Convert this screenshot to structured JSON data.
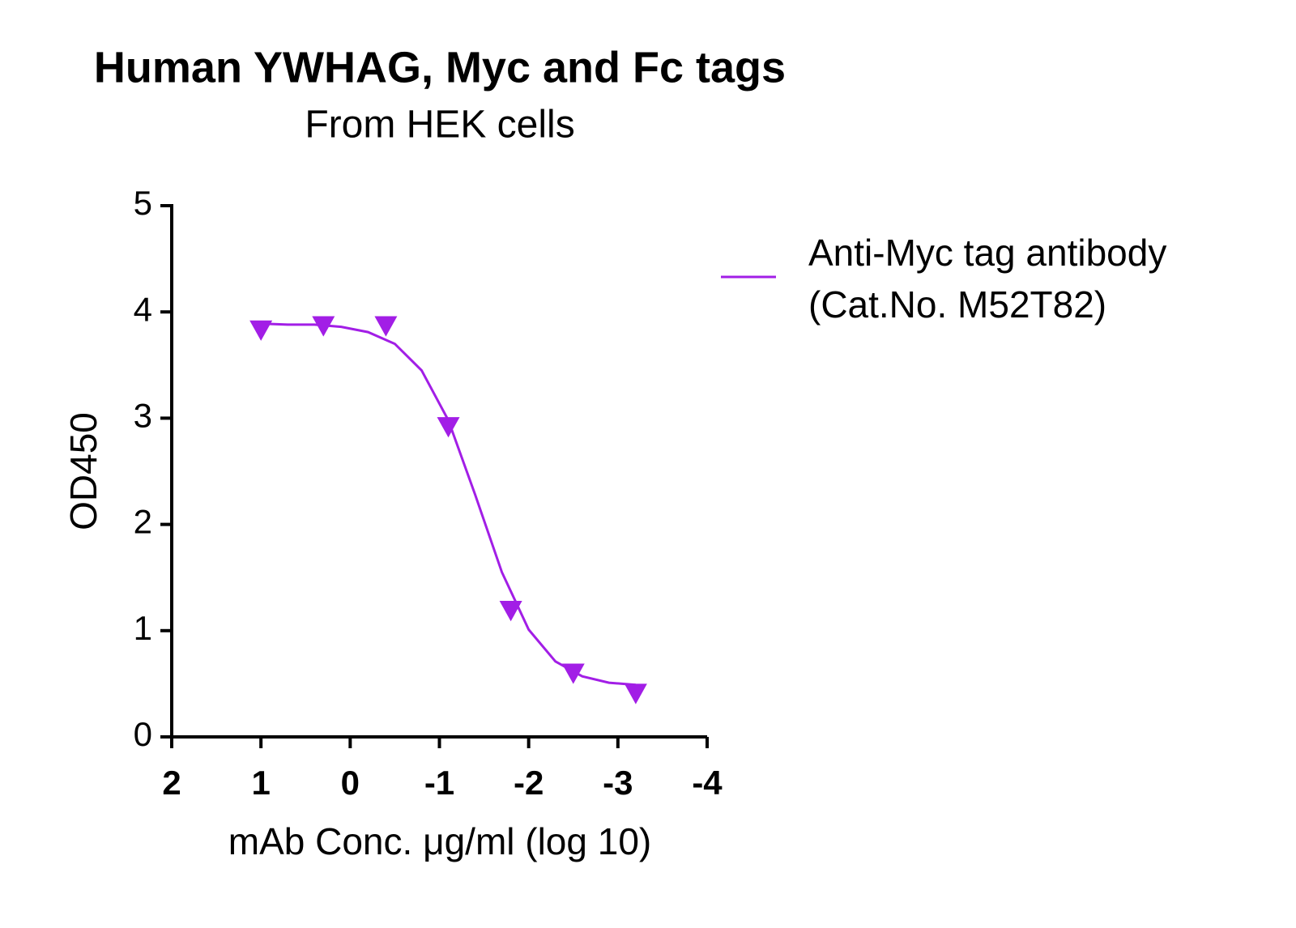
{
  "chart_data": {
    "type": "scatter",
    "title": "Human YWHAG, Myc and Fc tags",
    "subtitle": "From HEK cells",
    "x_label": "mAb Conc. μg/ml (log 10)",
    "y_label": "OD450",
    "xlim": [
      2,
      -4
    ],
    "xticks": [
      2,
      1,
      0,
      -1,
      -2,
      -3,
      -4
    ],
    "ylim": [
      0,
      5
    ],
    "yticks": [
      0,
      1,
      2,
      3,
      4,
      5
    ],
    "grid": false,
    "legend": "right",
    "series": [
      {
        "name": [
          "Anti-Myc tag antibody",
          "(Cat.No. M52T82)"
        ],
        "color": "#a21ee6",
        "marker": "triangle-down",
        "x": [
          1,
          0.3,
          -0.4,
          -1.1,
          -1.8,
          -2.5,
          -3.2
        ],
        "values": [
          3.84,
          3.88,
          3.88,
          2.93,
          1.2,
          0.61,
          0.42
        ],
        "curve": {
          "x": [
            1,
            0.7,
            0.4,
            0.1,
            -0.2,
            -0.5,
            -0.8,
            -1.1,
            -1.4,
            -1.7,
            -2.0,
            -2.3,
            -2.6,
            -2.9,
            -3.2
          ],
          "values": [
            3.89,
            3.88,
            3.88,
            3.86,
            3.81,
            3.7,
            3.45,
            2.98,
            2.28,
            1.55,
            1.01,
            0.71,
            0.57,
            0.51,
            0.49
          ]
        }
      }
    ]
  }
}
